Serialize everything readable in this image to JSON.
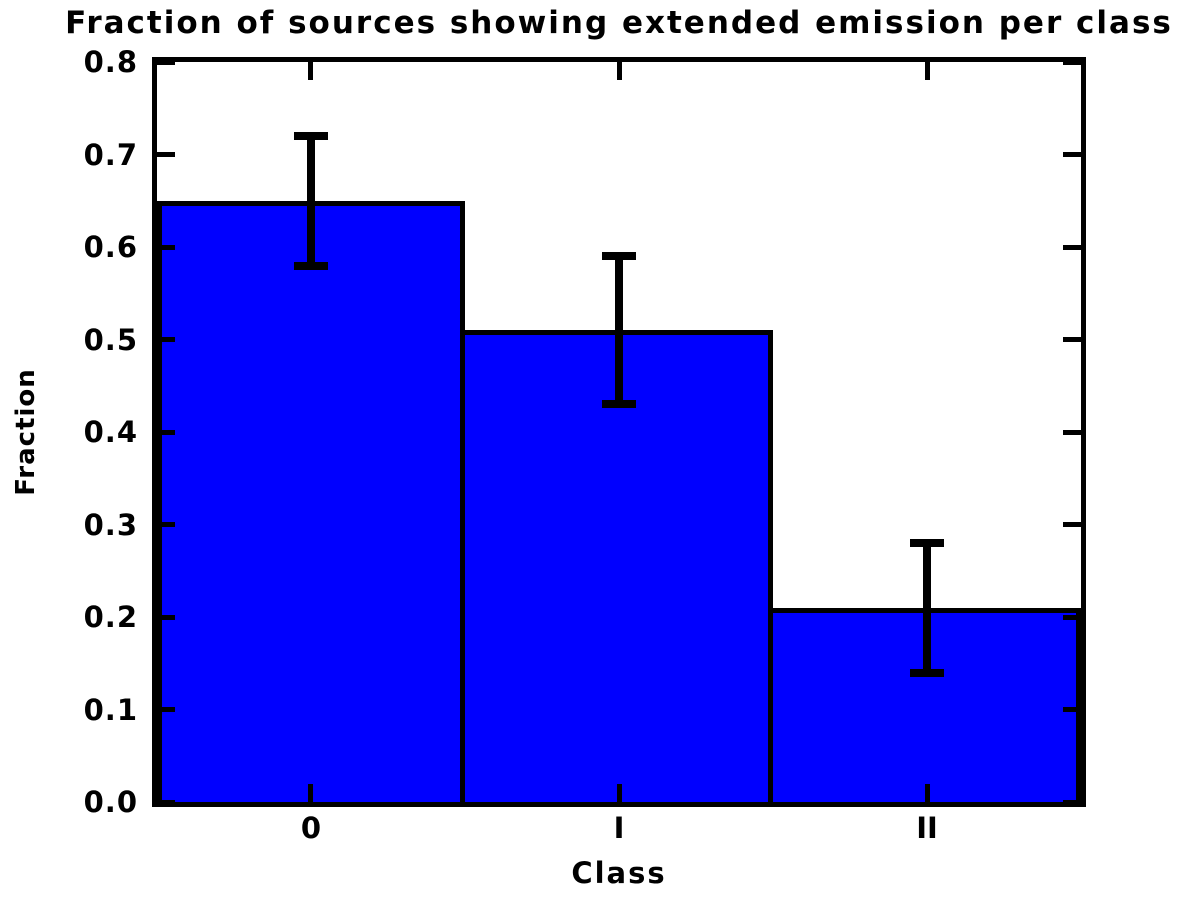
{
  "chart_data": {
    "type": "bar",
    "title": "Fraction of sources showing extended emission per class",
    "xlabel": "Class",
    "ylabel": "Fraction",
    "categories": [
      "0",
      "I",
      "II"
    ],
    "values": [
      0.65,
      0.51,
      0.21
    ],
    "error_low": [
      0.58,
      0.43,
      0.14
    ],
    "error_high": [
      0.72,
      0.59,
      0.28
    ],
    "ylim": [
      0.0,
      0.8
    ],
    "yticks": [
      0.0,
      0.1,
      0.2,
      0.3,
      0.4,
      0.5,
      0.6,
      0.7,
      0.8
    ],
    "ytick_labels": [
      "0.0",
      "0.1",
      "0.2",
      "0.3",
      "0.4",
      "0.5",
      "0.6",
      "0.7",
      "0.8"
    ],
    "bar_color": "#0000ff",
    "edge_color": "#000000",
    "background": "#ffffff",
    "grid": false,
    "legend": null
  }
}
